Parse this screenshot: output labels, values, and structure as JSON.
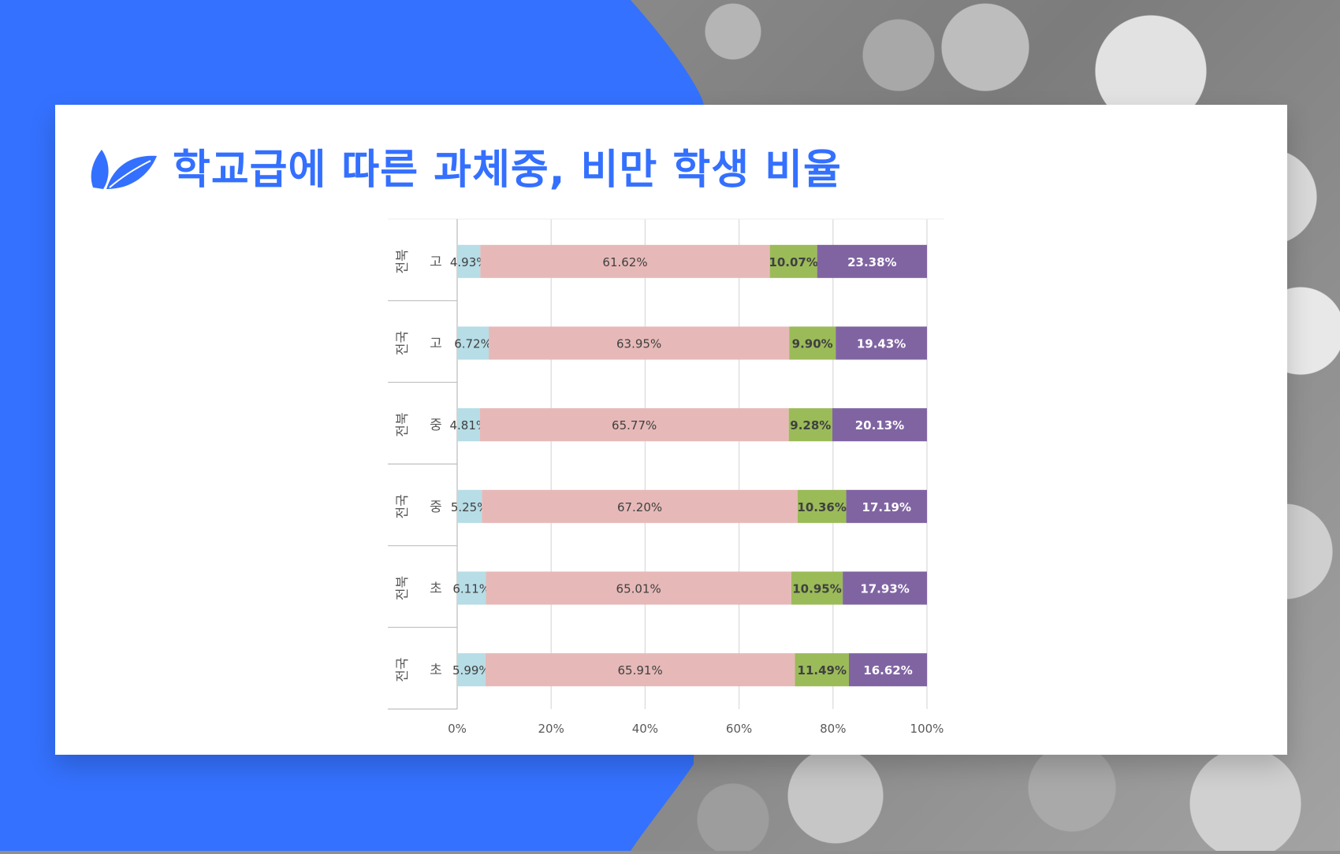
{
  "slide": {
    "title": "학교급에 따른 과체중, 비만 학생 비율",
    "accent_color": "#3470ff",
    "icon": "leaf-icon"
  },
  "chart_data": {
    "type": "bar",
    "orientation": "horizontal",
    "stacked": "percent",
    "categories": [
      {
        "region": "전북",
        "level": "고"
      },
      {
        "region": "전국",
        "level": "고"
      },
      {
        "region": "전북",
        "level": "중"
      },
      {
        "region": "전국",
        "level": "중"
      },
      {
        "region": "전북",
        "level": "초"
      },
      {
        "region": "전국",
        "level": "초"
      }
    ],
    "series": [
      {
        "color": "#b7dde6",
        "values": [
          4.93,
          6.72,
          4.81,
          5.25,
          6.11,
          5.99
        ],
        "labels": [
          "4.93%",
          "6.72%",
          "4.81%",
          "5.25%",
          "6.11%",
          "5.99%"
        ]
      },
      {
        "color": "#e6b9b8",
        "values": [
          61.62,
          63.95,
          65.77,
          67.2,
          65.01,
          65.91
        ],
        "labels": [
          "61.62%",
          "63.95%",
          "65.77%",
          "67.20%",
          "65.01%",
          "65.91%"
        ]
      },
      {
        "color": "#9bbb59",
        "values": [
          10.07,
          9.9,
          9.28,
          10.36,
          10.95,
          11.49
        ],
        "labels": [
          "10.07%",
          "9.90%",
          "9.28%",
          "10.36%",
          "10.95%",
          "11.49%"
        ]
      },
      {
        "color": "#8064a2",
        "values": [
          23.38,
          19.43,
          20.13,
          17.19,
          17.93,
          16.62
        ],
        "labels": [
          "23.38%",
          "19.43%",
          "20.13%",
          "17.19%",
          "17.93%",
          "16.62%"
        ]
      }
    ],
    "x_ticks": [
      "0%",
      "20%",
      "40%",
      "60%",
      "80%",
      "100%"
    ],
    "xlim": [
      0,
      100
    ],
    "grid": true,
    "legend": "none"
  }
}
